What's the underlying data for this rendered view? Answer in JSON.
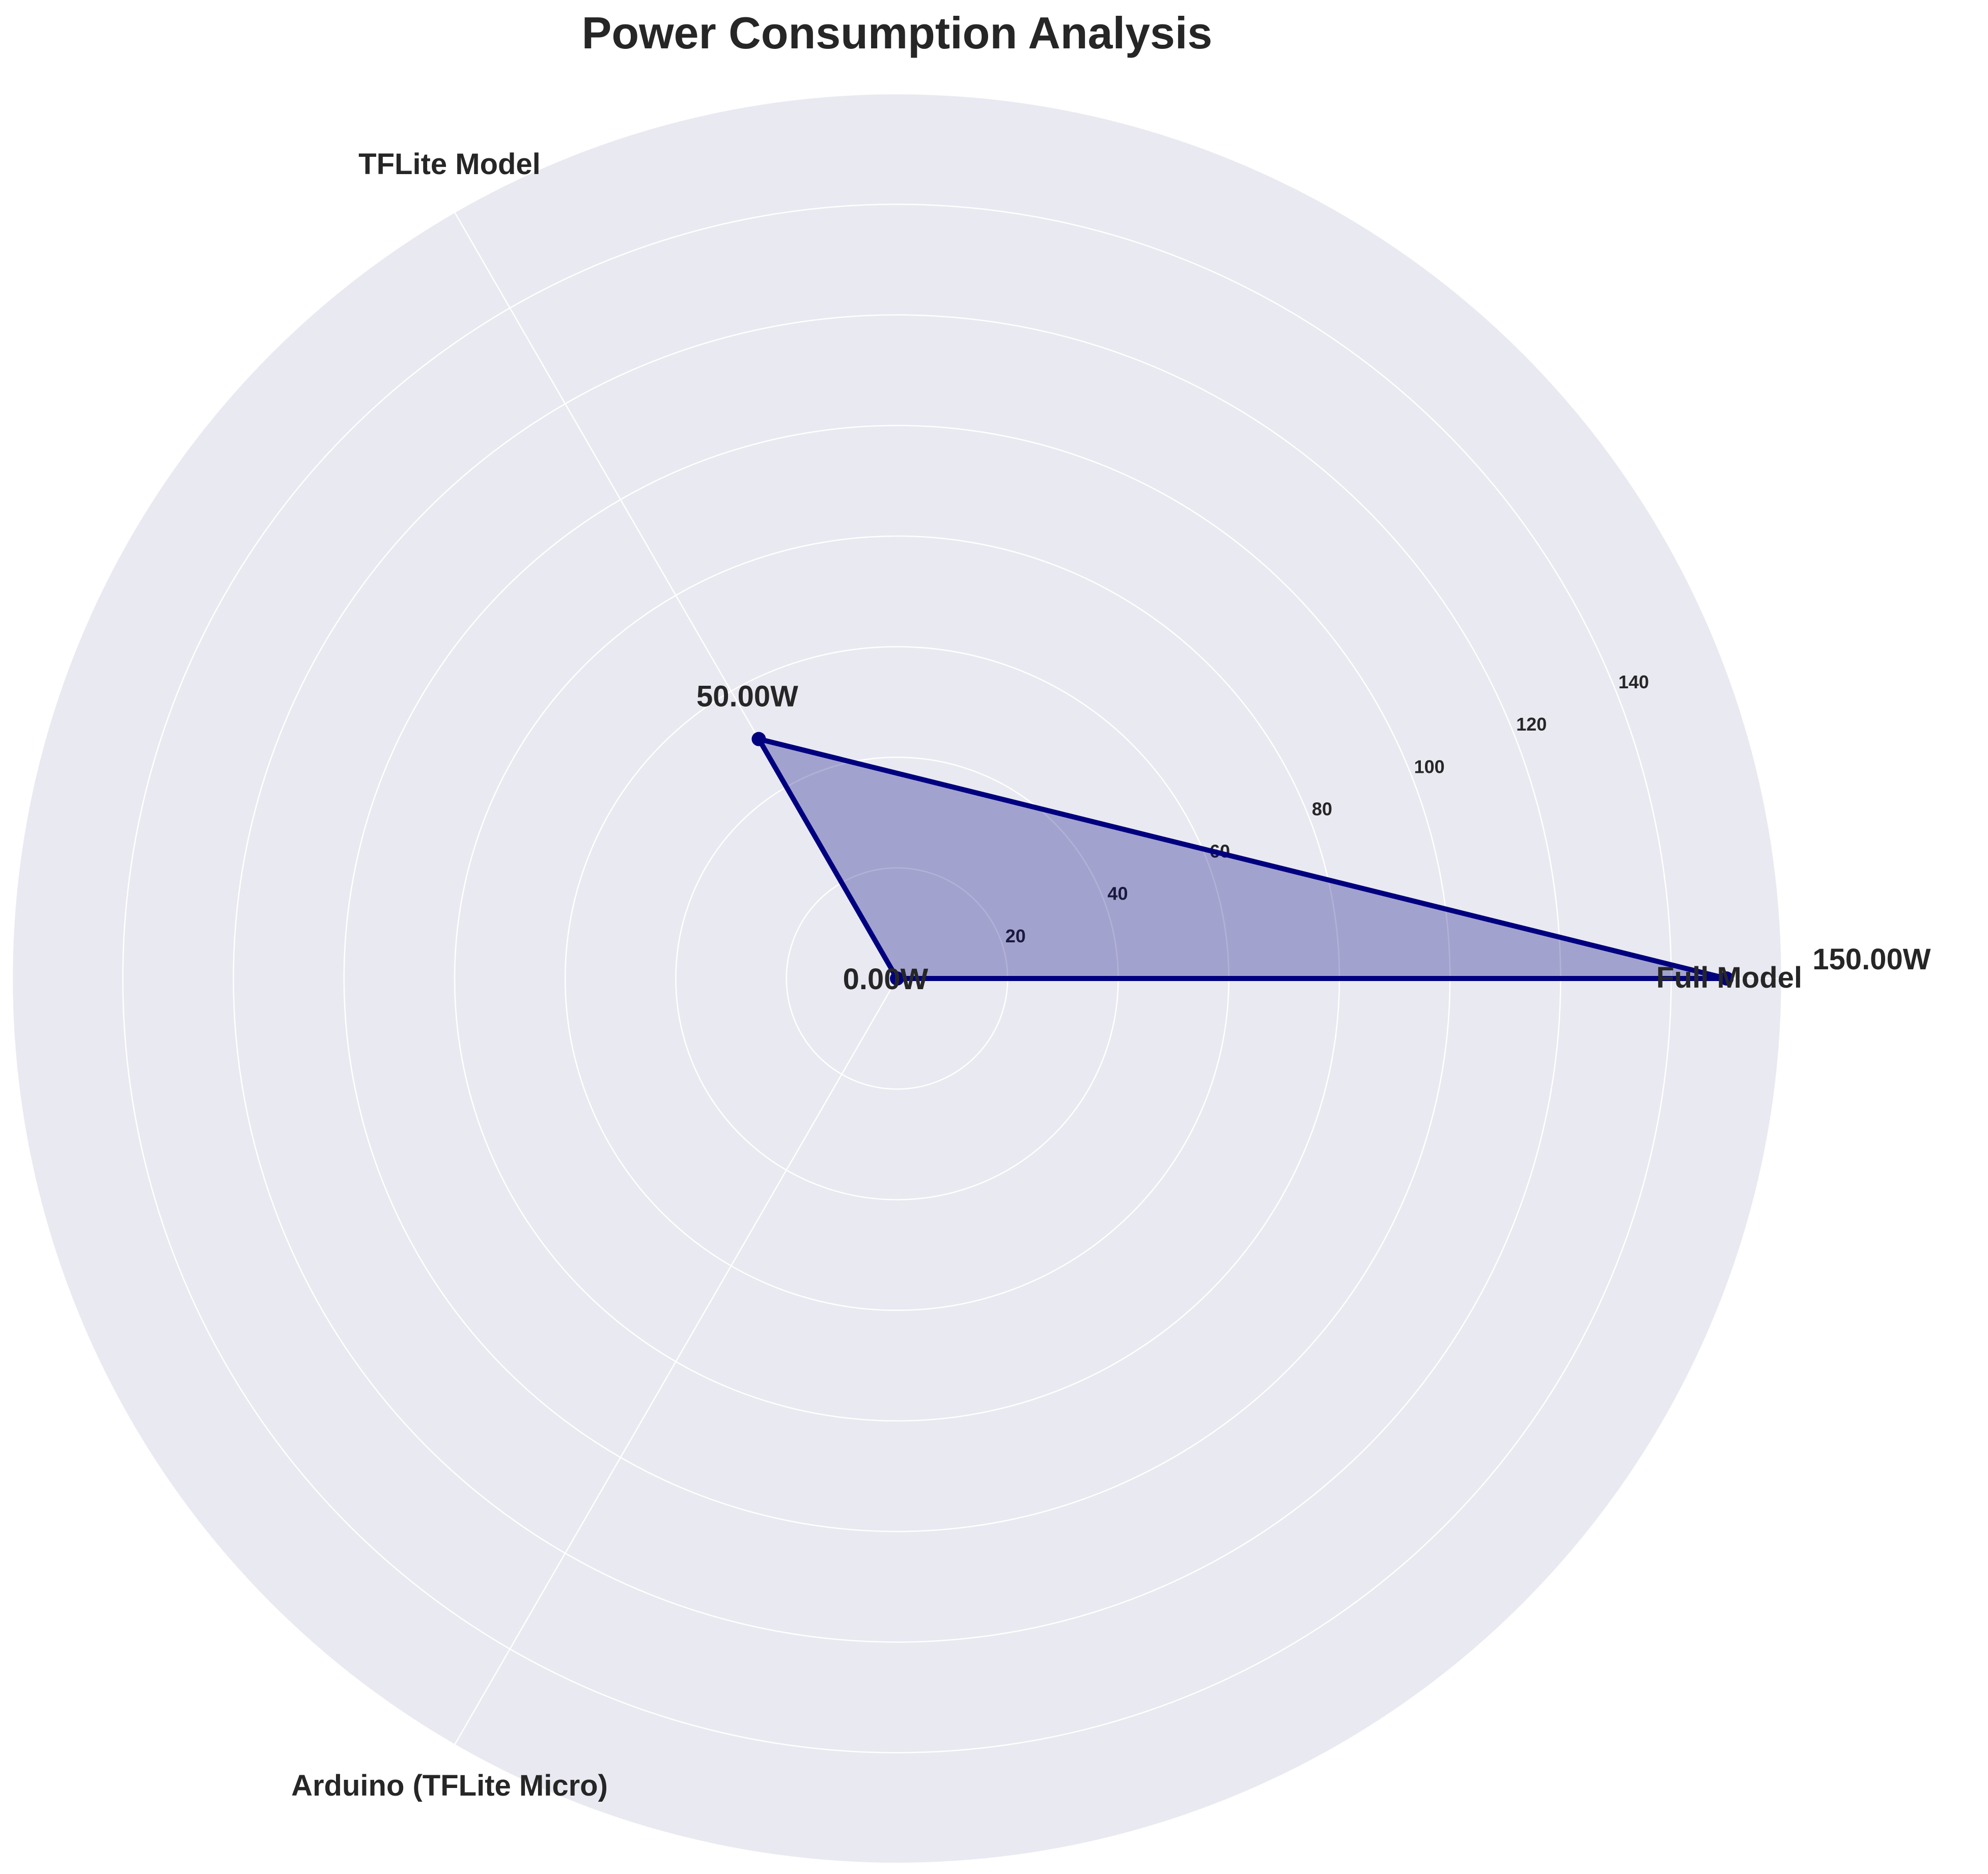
{
  "chart_data": {
    "type": "radar",
    "title": "Power Consumption Analysis",
    "categories": [
      "Full Model",
      "TFLite Model",
      "Arduino (TFLite Micro)"
    ],
    "values": [
      150.0,
      50.0,
      0.0
    ],
    "value_labels": [
      "150.00W",
      "50.00W",
      "0.00W"
    ],
    "rlim": [
      0,
      160
    ],
    "r_ticks": [
      20,
      40,
      60,
      80,
      100,
      120,
      140
    ],
    "r_tick_labels": [
      "20",
      "40",
      "60",
      "80",
      "100",
      "120",
      "140"
    ],
    "grid": true,
    "colors": {
      "background": "#e9e9f1",
      "gridline": "#ffffff",
      "series_line": "#00007f",
      "series_fill": "#00007f",
      "series_fill_opacity": 0.3
    }
  }
}
